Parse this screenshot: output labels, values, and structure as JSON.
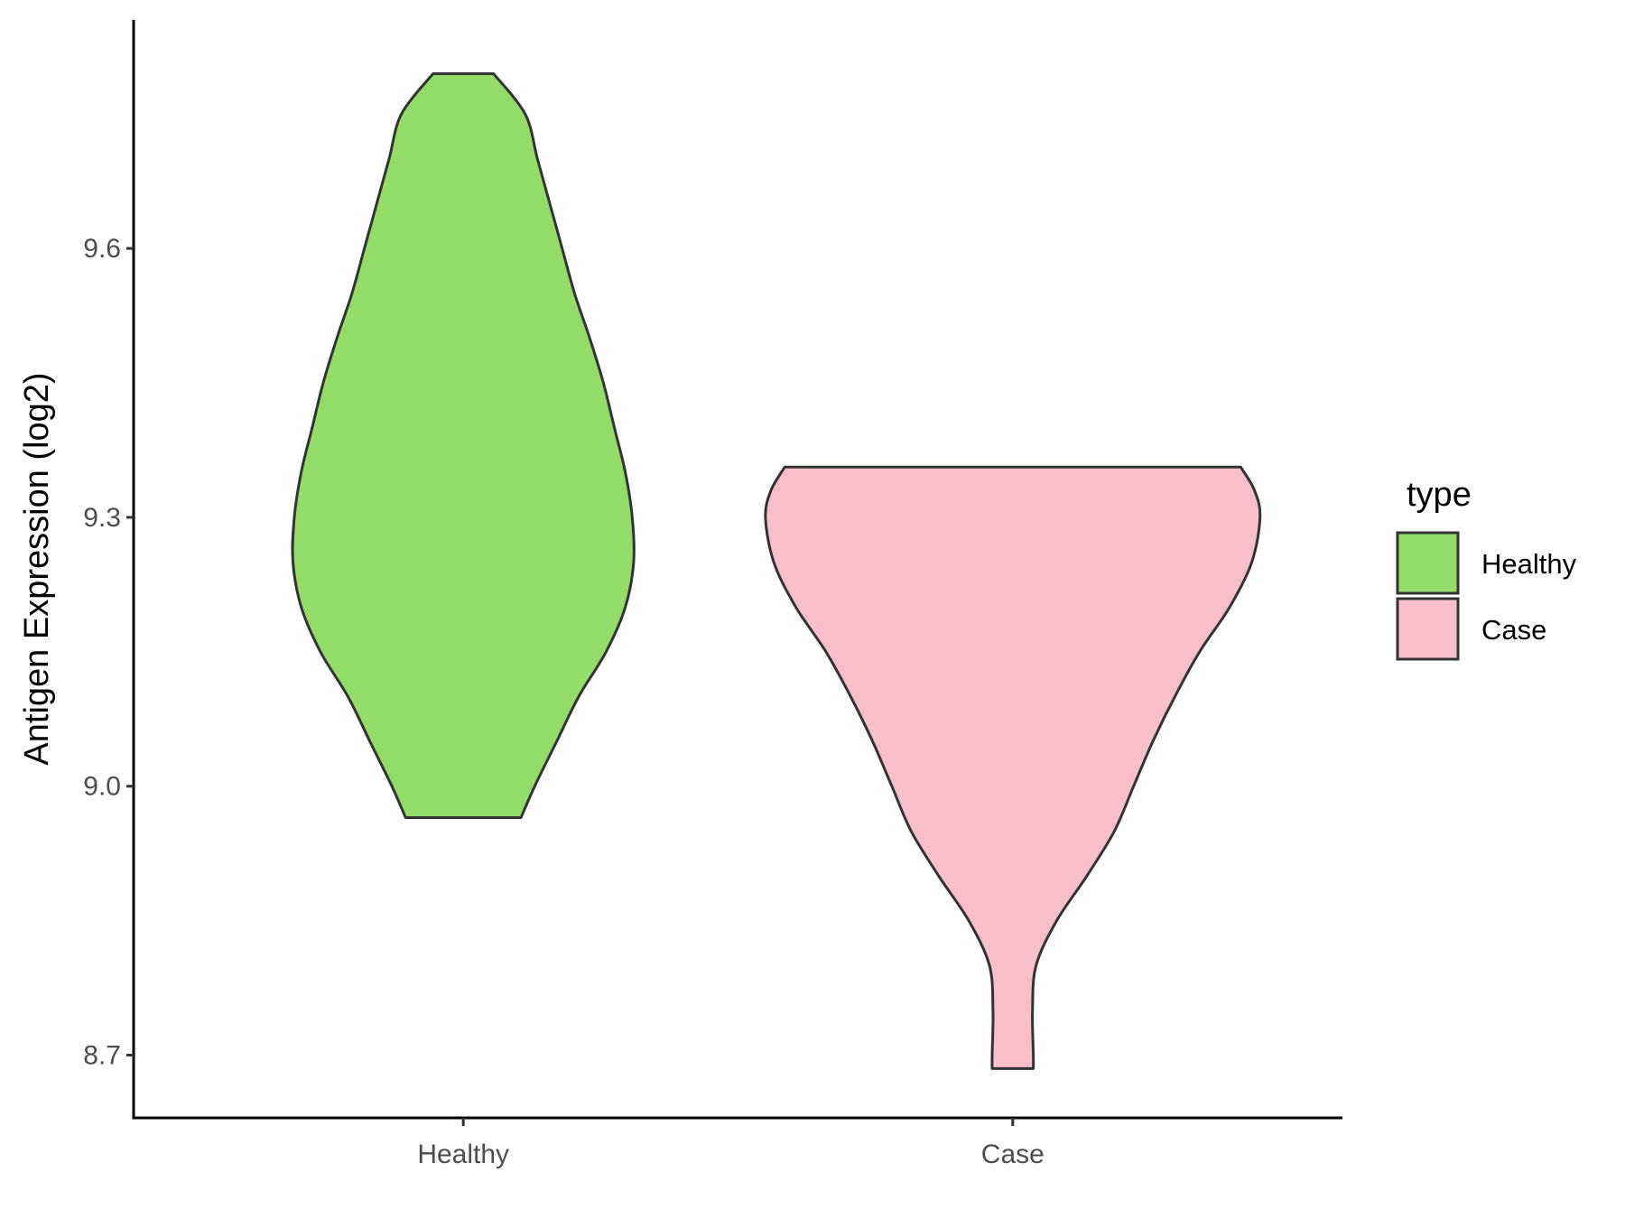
{
  "chart_data": {
    "type": "violin",
    "xlabel": "",
    "ylabel": "Antigen Expression (log2)",
    "ylim": [
      8.63,
      9.855
    ],
    "y_ticks": [
      8.7,
      9.0,
      9.3,
      9.6
    ],
    "y_tick_labels": [
      "8.7",
      "9.0",
      "9.3",
      "9.6"
    ],
    "categories": [
      "Healthy",
      "Case"
    ],
    "grid": false,
    "legend": {
      "title": "type",
      "placement": "right",
      "entries": [
        {
          "label": "Healthy",
          "color": "#93dc6a"
        },
        {
          "label": "Case",
          "color": "#f8bfcb"
        }
      ]
    },
    "series": [
      {
        "name": "Healthy",
        "color": "#93dc6a",
        "y_min": 8.965,
        "y_max": 9.795,
        "density_profile": [
          [
            8.965,
            0.21
          ],
          [
            9.0,
            0.26
          ],
          [
            9.05,
            0.34
          ],
          [
            9.1,
            0.42
          ],
          [
            9.15,
            0.52
          ],
          [
            9.2,
            0.59
          ],
          [
            9.25,
            0.62
          ],
          [
            9.3,
            0.615
          ],
          [
            9.35,
            0.59
          ],
          [
            9.4,
            0.55
          ],
          [
            9.45,
            0.51
          ],
          [
            9.5,
            0.46
          ],
          [
            9.55,
            0.405
          ],
          [
            9.6,
            0.36
          ],
          [
            9.65,
            0.315
          ],
          [
            9.7,
            0.27
          ],
          [
            9.75,
            0.225
          ],
          [
            9.795,
            0.11
          ]
        ]
      },
      {
        "name": "Case",
        "color": "#f8bfcb",
        "y_min": 8.685,
        "y_max": 9.356,
        "density_profile": [
          [
            8.685,
            0.075
          ],
          [
            8.7,
            0.075
          ],
          [
            8.75,
            0.072
          ],
          [
            8.8,
            0.085
          ],
          [
            8.85,
            0.16
          ],
          [
            8.9,
            0.27
          ],
          [
            8.95,
            0.37
          ],
          [
            9.0,
            0.44
          ],
          [
            9.05,
            0.51
          ],
          [
            9.1,
            0.59
          ],
          [
            9.15,
            0.68
          ],
          [
            9.2,
            0.79
          ],
          [
            9.25,
            0.87
          ],
          [
            9.3,
            0.9
          ],
          [
            9.33,
            0.88
          ],
          [
            9.356,
            0.83
          ]
        ]
      }
    ]
  }
}
